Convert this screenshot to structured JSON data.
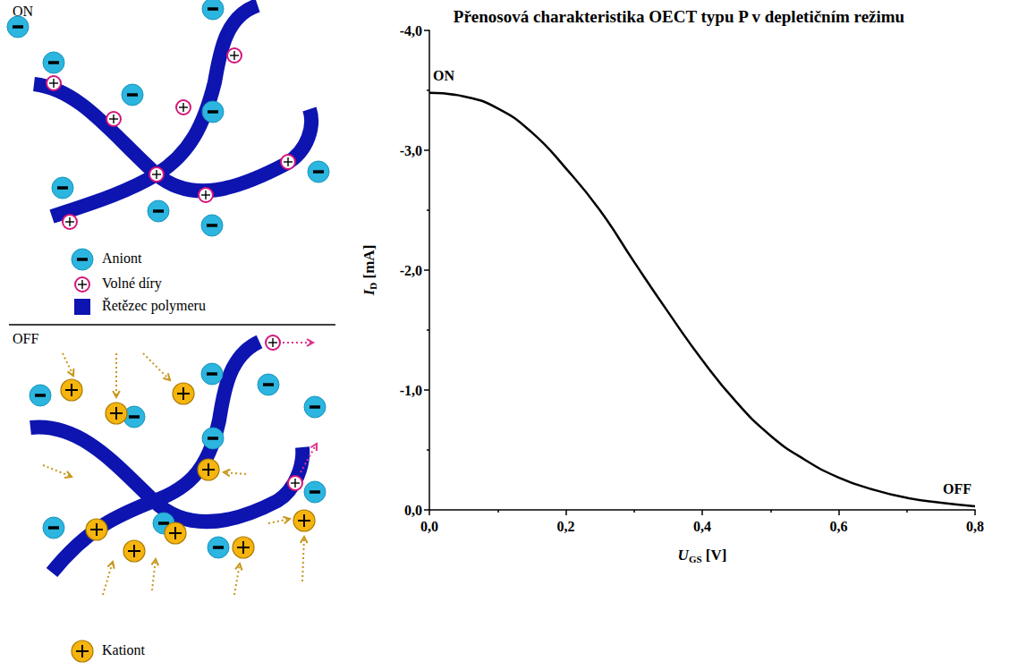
{
  "chart_data": {
    "type": "line",
    "title": "Přenosová charakteristika OECT typu P v depletičním režimu",
    "x_label": {
      "symbol": "U",
      "subscript": "GS",
      "unit": "[V]"
    },
    "y_label": {
      "symbol": "I",
      "subscript": "D",
      "unit": "[mA]"
    },
    "x": [
      0,
      0.05,
      0.1,
      0.15,
      0.2,
      0.25,
      0.3,
      0.35,
      0.4,
      0.45,
      0.5,
      0.55,
      0.6,
      0.65,
      0.7,
      0.75,
      0.8
    ],
    "values": [
      -3.48,
      -3.45,
      -3.35,
      -3.15,
      -2.85,
      -2.5,
      -2.07,
      -1.65,
      -1.25,
      -0.9,
      -0.62,
      -0.42,
      -0.27,
      -0.17,
      -0.1,
      -0.06,
      -0.03
    ],
    "color": "#000000",
    "xlim": [
      0,
      0.8
    ],
    "xticks": [
      {
        "value": 0,
        "label": "0,0"
      },
      {
        "value": 0.2,
        "label": "0,2"
      },
      {
        "value": 0.4,
        "label": "0,4"
      },
      {
        "value": 0.6,
        "label": "0,6"
      },
      {
        "value": 0.8,
        "label": "0,8"
      }
    ],
    "ylim": [
      0,
      -4
    ],
    "yticks": [
      {
        "value": 0,
        "label": "0,0"
      },
      {
        "value": -1,
        "label": "-1,0"
      },
      {
        "value": -2,
        "label": "-2,0"
      },
      {
        "value": -3,
        "label": "-3,0"
      },
      {
        "value": -4,
        "label": "-4,0"
      }
    ],
    "grid": false,
    "annotations": [
      "ON",
      "OFF"
    ]
  },
  "diagram": {
    "on_label": "ON",
    "off_label": "OFF",
    "legend": {
      "anion": "Aniont",
      "hole": "Volné díry",
      "chain": "Řetězec polymeru",
      "cation": "Kationt"
    }
  }
}
